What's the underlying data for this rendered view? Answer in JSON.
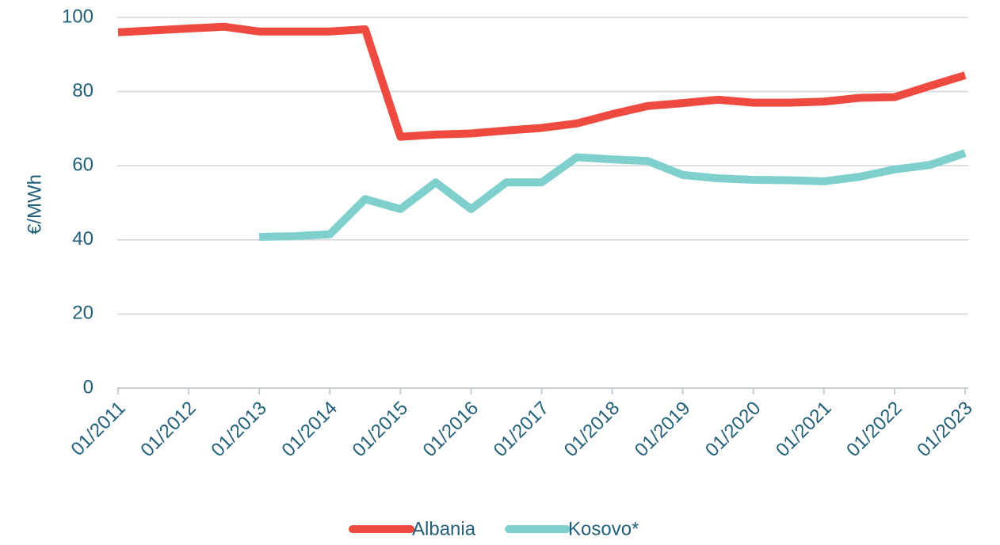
{
  "chart_data": {
    "type": "line",
    "y_label": "€/MWh",
    "categories": [
      "01/2011",
      null,
      "01/2012",
      null,
      "01/2013",
      null,
      "01/2014",
      null,
      "01/2015",
      null,
      "01/2016",
      null,
      "01/2017",
      null,
      "01/2018",
      null,
      "01/2019",
      null,
      "01/2020",
      null,
      "01/2021",
      null,
      "01/2022",
      null,
      "01/2023"
    ],
    "series": [
      {
        "name": "Albania",
        "color": "#ef4a3f",
        "values": [
          96,
          96.5,
          97,
          97.5,
          96.2,
          96.2,
          96.2,
          96.8,
          67.8,
          68.4,
          68.7,
          69.5,
          70.2,
          71.4,
          73.9,
          76.1,
          76.9,
          77.8,
          77,
          77,
          77.3,
          78.3,
          78.5,
          81.5,
          84.4
        ]
      },
      {
        "name": "Kosovo*",
        "color": "#7fd0cc",
        "values": [
          null,
          null,
          null,
          null,
          40.8,
          41,
          41.5,
          51,
          48.3,
          55.5,
          48.3,
          55.5,
          55.5,
          62.3,
          61.7,
          61.3,
          57.5,
          56.6,
          56.2,
          56.1,
          55.8,
          57,
          59,
          60.2,
          63.4
        ]
      }
    ],
    "ylim": [
      0,
      100
    ],
    "yticks": [
      0,
      20,
      40,
      60,
      80,
      100
    ],
    "grid": true,
    "legend": "bottom"
  }
}
